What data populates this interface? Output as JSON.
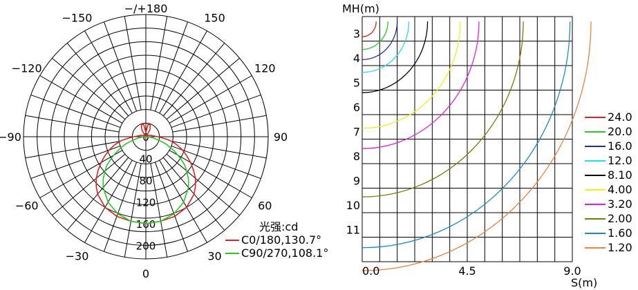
{
  "chart_data": [
    {
      "type": "polar",
      "angle_labels": [
        {
          "text": "−/+180",
          "deg": 180
        },
        {
          "text": "−150",
          "deg": -150
        },
        {
          "text": "150",
          "deg": 150
        },
        {
          "text": "−120",
          "deg": -120
        },
        {
          "text": "120",
          "deg": 120
        },
        {
          "text": "−90",
          "deg": -90
        },
        {
          "text": "90",
          "deg": 90
        },
        {
          "text": "−60",
          "deg": -60
        },
        {
          "text": "60",
          "deg": 60
        },
        {
          "text": "−30",
          "deg": -30
        },
        {
          "text": "30",
          "deg": 30
        },
        {
          "text": "0",
          "deg": 0
        }
      ],
      "radial_labels": [
        "0",
        "40",
        "80",
        "120",
        "160",
        "200"
      ],
      "radial_max": 200,
      "unit_label": "光强:cd",
      "series": [
        {
          "name": "C0/180,130.7°",
          "color": "#e02020",
          "angles_deg": [
            0,
            10,
            20,
            30,
            40,
            45,
            50,
            55,
            60,
            65,
            70,
            75,
            80,
            82,
            84,
            86,
            88,
            90,
            92,
            95,
            100,
            105,
            110,
            120,
            130,
            140,
            150,
            160,
            170,
            180
          ],
          "values": [
            160,
            158,
            156,
            150,
            138,
            129,
            119,
            107,
            95,
            83,
            72,
            60,
            48,
            42,
            35,
            30,
            26,
            22,
            18,
            15,
            12,
            10,
            8,
            3,
            0,
            3,
            15,
            24,
            23,
            8
          ]
        },
        {
          "name": "C90/270,108.1°",
          "color": "#22cc22",
          "angles_deg": [
            0,
            10,
            20,
            30,
            40,
            45,
            50,
            54,
            58,
            62,
            65,
            70,
            75,
            80,
            85,
            90
          ],
          "values": [
            160,
            158,
            151,
            139,
            122,
            111,
            98,
            88,
            75,
            62,
            53,
            40,
            25,
            14,
            6,
            0
          ]
        }
      ]
    },
    {
      "type": "isolux",
      "y_axis_label": "MH(m)",
      "x_axis_label": "S(m)",
      "x_ticks": [
        "0.0",
        "4.5",
        "9.0"
      ],
      "y_ticks": [
        "3",
        "4",
        "5",
        "6",
        "7",
        "8",
        "9",
        "10",
        "11"
      ],
      "xlim": [
        0,
        9
      ],
      "ylim": [
        2,
        12
      ],
      "series": [
        {
          "name": "24.0",
          "color": "#e02020",
          "radius_m": 0.6
        },
        {
          "name": "20.0",
          "color": "#22cc22",
          "radius_m": 1.1
        },
        {
          "name": "16.0",
          "color": "#1a2ea8",
          "radius_m": 1.5
        },
        {
          "name": "12.0",
          "color": "#22e0e0",
          "radius_m": 2.0
        },
        {
          "name": "8.10",
          "color": "#000000",
          "radius_m": 2.8
        },
        {
          "name": "4.00",
          "color": "#f0f020",
          "radius_m": 4.2
        },
        {
          "name": "3.20",
          "color": "#e020e0",
          "radius_m": 5.0
        },
        {
          "name": "2.00",
          "color": "#7a7a00",
          "radius_m": 6.9
        },
        {
          "name": "1.60",
          "color": "#1a8ad0",
          "radius_m": 8.9
        },
        {
          "name": "1.20",
          "color": "#f08040",
          "radius_m": 9.8
        }
      ]
    }
  ]
}
